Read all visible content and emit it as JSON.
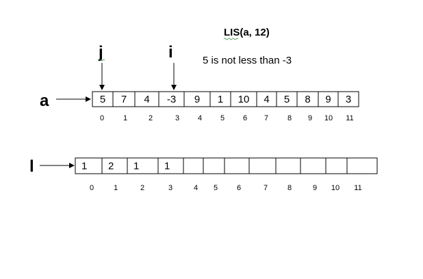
{
  "title": "LIS(a, 12)",
  "note": "5 is not less than -3",
  "pointers": {
    "j": "j",
    "i": "i"
  },
  "array_a": {
    "label": "a",
    "values": [
      "5",
      "7",
      "4",
      "-3",
      "9",
      "1",
      "10",
      "4",
      "5",
      "8",
      "9",
      "3"
    ],
    "indices": [
      "0",
      "1",
      "2",
      "3",
      "4",
      "5",
      "6",
      "7",
      "8",
      "9",
      "10",
      "11"
    ]
  },
  "array_l": {
    "label": "l",
    "values": [
      "1",
      "2",
      "1",
      "1",
      "",
      "",
      "",
      "",
      "",
      "",
      "",
      ""
    ],
    "indices": [
      "0",
      "1",
      "2",
      "3",
      "4",
      "5",
      "6",
      "7",
      "8",
      "9",
      "10",
      "11"
    ]
  }
}
